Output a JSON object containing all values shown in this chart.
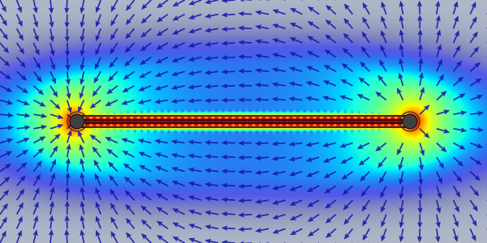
{
  "bg_color": "#b0b8c8",
  "figsize": [
    6.0,
    3.0
  ],
  "dpi": 100,
  "xlim": [
    -3.0,
    3.0
  ],
  "ylim": [
    -1.5,
    1.5
  ],
  "bar_x_start": -2.05,
  "bar_x_end": 2.05,
  "bar_lines_offsets": [
    -0.07,
    -0.023,
    0.023,
    0.07
  ],
  "bar_color": "#111111",
  "bar_linewidth": 1.2,
  "pole_left_x": -2.05,
  "pole_right_x": 2.05,
  "arrow_color": "#1515aa",
  "quiver_grid_nx": 30,
  "quiver_grid_ny": 18,
  "colormap_name": "jet"
}
